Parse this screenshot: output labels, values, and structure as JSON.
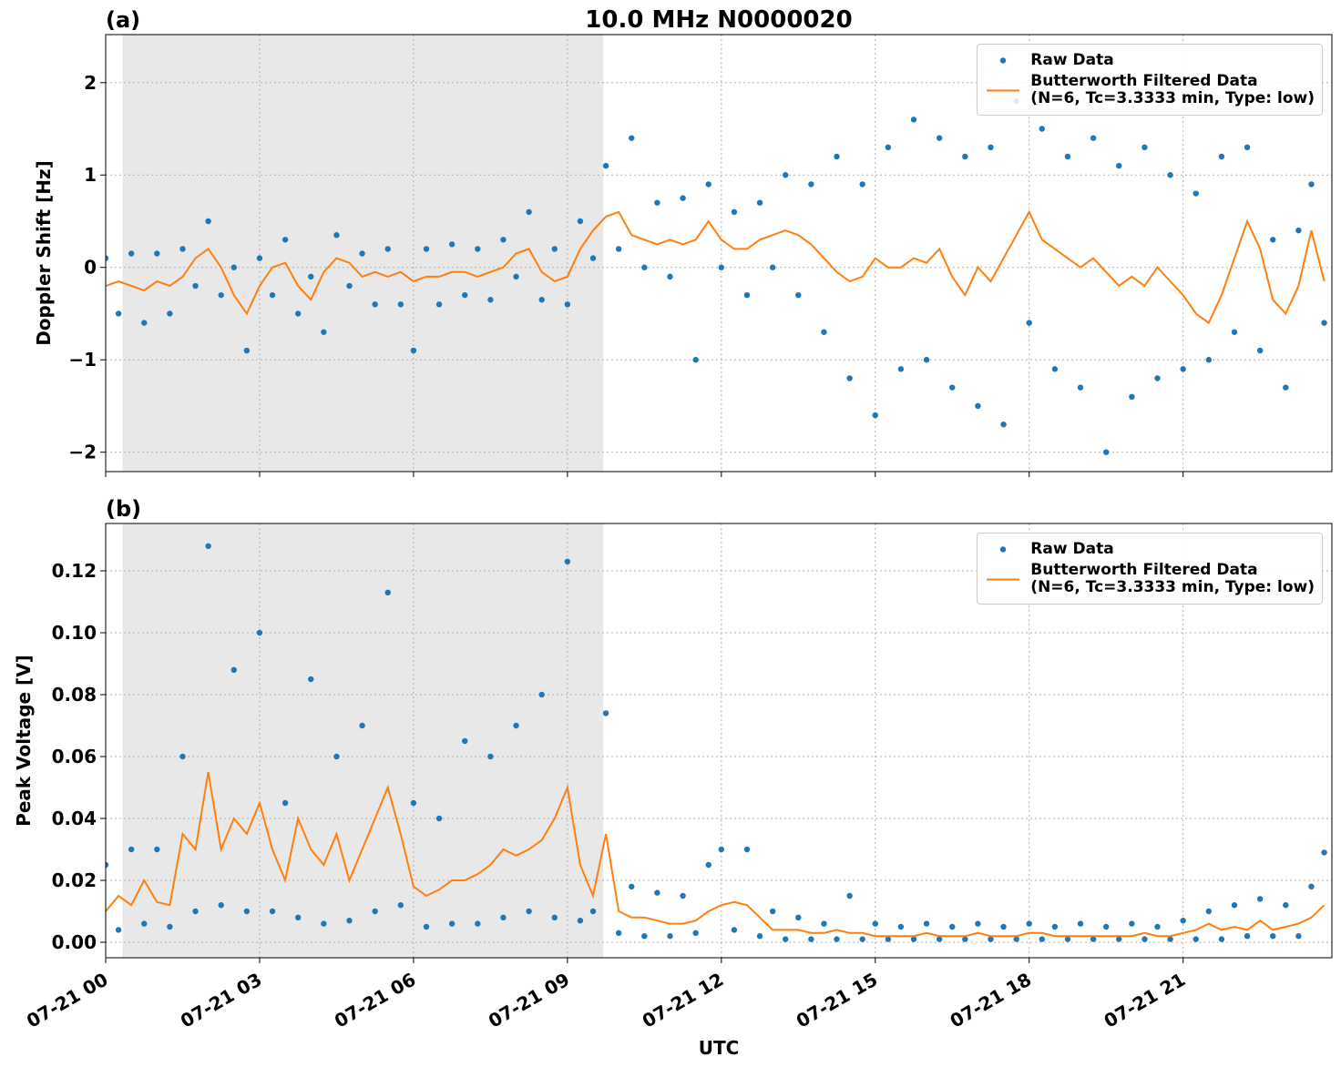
{
  "chart_data": [
    {
      "type": "line",
      "title": "10.0 MHz N0000020",
      "panel_label": "(a)",
      "ylabel": "Doppler Shift [Hz]",
      "xlim": [
        0,
        23.9
      ],
      "ylim": [
        -2.21,
        2.52
      ],
      "grid": true,
      "shaded_span": [
        0.33,
        9.7
      ],
      "shade_color": "#e8e8e8",
      "xticks": [
        0,
        3,
        6,
        9,
        12,
        15,
        18,
        21
      ],
      "yticks": [
        {
          "value": -2,
          "label": "−2"
        },
        {
          "value": -1,
          "label": "−1"
        },
        0,
        1,
        2
      ],
      "legend": "upper right",
      "x": [
        0,
        0.25,
        0.5,
        0.75,
        1,
        1.25,
        1.5,
        1.75,
        2,
        2.25,
        2.5,
        2.75,
        3,
        3.25,
        3.5,
        3.75,
        4,
        4.25,
        4.5,
        4.75,
        5,
        5.25,
        5.5,
        5.75,
        6,
        6.25,
        6.5,
        6.75,
        7,
        7.25,
        7.5,
        7.75,
        8,
        8.25,
        8.5,
        8.75,
        9,
        9.25,
        9.5,
        9.75,
        10,
        10.25,
        10.5,
        10.75,
        11,
        11.25,
        11.5,
        11.75,
        12,
        12.25,
        12.5,
        12.75,
        13,
        13.25,
        13.5,
        13.75,
        14,
        14.25,
        14.5,
        14.75,
        15,
        15.25,
        15.5,
        15.75,
        16,
        16.25,
        16.5,
        16.75,
        17,
        17.25,
        17.5,
        17.75,
        18,
        18.25,
        18.5,
        18.75,
        19,
        19.25,
        19.5,
        19.75,
        20,
        20.25,
        20.5,
        20.75,
        21,
        21.25,
        21.5,
        21.75,
        22,
        22.25,
        22.5,
        22.75,
        23,
        23.25,
        23.5,
        23.75
      ],
      "series": [
        {
          "name": "Raw Data",
          "style": "dots",
          "color": "#1f77b4",
          "values": [
            0.1,
            -0.5,
            0.15,
            -0.6,
            0.15,
            -0.5,
            0.2,
            -0.2,
            0.5,
            -0.3,
            0.0,
            -0.9,
            0.1,
            -0.3,
            0.3,
            -0.5,
            -0.1,
            -0.7,
            0.35,
            -0.2,
            0.15,
            -0.4,
            0.2,
            -0.4,
            -0.9,
            0.2,
            -0.4,
            0.25,
            -0.3,
            0.2,
            -0.35,
            0.3,
            -0.1,
            0.6,
            -0.35,
            0.2,
            -0.4,
            0.5,
            0.1,
            1.1,
            0.2,
            1.4,
            0.0,
            0.7,
            -0.1,
            0.75,
            -1.0,
            0.9,
            0.0,
            0.6,
            -0.3,
            0.7,
            0.0,
            1.0,
            -0.3,
            0.9,
            -0.7,
            1.2,
            -1.2,
            0.9,
            -1.6,
            1.3,
            -1.1,
            1.6,
            -1.0,
            1.4,
            -1.3,
            1.2,
            -1.5,
            1.3,
            -1.7,
            1.8,
            -0.6,
            1.5,
            -1.1,
            1.2,
            -1.3,
            1.4,
            -2.0,
            1.1,
            -1.4,
            1.3,
            -1.2,
            1.0,
            -1.1,
            0.8,
            -1.0,
            1.2,
            -0.7,
            1.3,
            -0.9,
            0.3,
            -1.3,
            0.4,
            0.9,
            -0.6
          ]
        },
        {
          "name": "Butterworth Filtered Data\n(N=6, Tc=3.3333 min, Type: low)",
          "style": "line",
          "color": "#ff7f0e",
          "values": [
            -0.2,
            -0.15,
            -0.2,
            -0.25,
            -0.15,
            -0.2,
            -0.1,
            0.1,
            0.2,
            0.0,
            -0.3,
            -0.5,
            -0.2,
            0.0,
            0.05,
            -0.2,
            -0.35,
            -0.05,
            0.1,
            0.05,
            -0.1,
            -0.05,
            -0.1,
            -0.05,
            -0.15,
            -0.1,
            -0.1,
            -0.05,
            -0.05,
            -0.1,
            -0.05,
            0.0,
            0.15,
            0.2,
            -0.05,
            -0.15,
            -0.1,
            0.2,
            0.4,
            0.55,
            0.6,
            0.35,
            0.3,
            0.25,
            0.3,
            0.25,
            0.3,
            0.5,
            0.3,
            0.2,
            0.2,
            0.3,
            0.35,
            0.4,
            0.35,
            0.25,
            0.1,
            -0.05,
            -0.15,
            -0.1,
            0.1,
            0.0,
            0.0,
            0.1,
            0.05,
            0.2,
            -0.1,
            -0.3,
            0.0,
            -0.15,
            0.1,
            0.35,
            0.6,
            0.3,
            0.2,
            0.1,
            0.0,
            0.1,
            -0.05,
            -0.2,
            -0.1,
            -0.2,
            0.0,
            -0.15,
            -0.3,
            -0.5,
            -0.6,
            -0.3,
            0.1,
            0.5,
            0.2,
            -0.35,
            -0.5,
            -0.2,
            0.4,
            -0.15
          ]
        }
      ]
    },
    {
      "type": "line",
      "panel_label": "(b)",
      "ylabel": "Peak Voltage [V]",
      "xlabel": "UTC",
      "xlim": [
        0,
        23.9
      ],
      "ylim": [
        -0.005,
        0.1353
      ],
      "grid": true,
      "shaded_span": [
        0.33,
        9.7
      ],
      "shade_color": "#e8e8e8",
      "xticks": [
        {
          "value": 0,
          "label": "07-21 00"
        },
        {
          "value": 3,
          "label": "07-21 03"
        },
        {
          "value": 6,
          "label": "07-21 06"
        },
        {
          "value": 9,
          "label": "07-21 09"
        },
        {
          "value": 12,
          "label": "07-21 12"
        },
        {
          "value": 15,
          "label": "07-21 15"
        },
        {
          "value": 18,
          "label": "07-21 18"
        },
        {
          "value": 21,
          "label": "07-21 21"
        }
      ],
      "yticks": [
        {
          "value": 0,
          "label": "0.00"
        },
        {
          "value": 0.02,
          "label": "0.02"
        },
        {
          "value": 0.04,
          "label": "0.04"
        },
        {
          "value": 0.06,
          "label": "0.06"
        },
        {
          "value": 0.08,
          "label": "0.08"
        },
        {
          "value": 0.1,
          "label": "0.10"
        },
        {
          "value": 0.12,
          "label": "0.12"
        }
      ],
      "legend": "upper right",
      "x": [
        0,
        0.25,
        0.5,
        0.75,
        1,
        1.25,
        1.5,
        1.75,
        2,
        2.25,
        2.5,
        2.75,
        3,
        3.25,
        3.5,
        3.75,
        4,
        4.25,
        4.5,
        4.75,
        5,
        5.25,
        5.5,
        5.75,
        6,
        6.25,
        6.5,
        6.75,
        7,
        7.25,
        7.5,
        7.75,
        8,
        8.25,
        8.5,
        8.75,
        9,
        9.25,
        9.5,
        9.75,
        10,
        10.25,
        10.5,
        10.75,
        11,
        11.25,
        11.5,
        11.75,
        12,
        12.25,
        12.5,
        12.75,
        13,
        13.25,
        13.5,
        13.75,
        14,
        14.25,
        14.5,
        14.75,
        15,
        15.25,
        15.5,
        15.75,
        16,
        16.25,
        16.5,
        16.75,
        17,
        17.25,
        17.5,
        17.75,
        18,
        18.25,
        18.5,
        18.75,
        19,
        19.25,
        19.5,
        19.75,
        20,
        20.25,
        20.5,
        20.75,
        21,
        21.25,
        21.5,
        21.75,
        22,
        22.25,
        22.5,
        22.75,
        23,
        23.25,
        23.5,
        23.75
      ],
      "series": [
        {
          "name": "Raw Data",
          "style": "dots",
          "color": "#1f77b4",
          "values": [
            0.025,
            0.004,
            0.03,
            0.006,
            0.03,
            0.005,
            0.06,
            0.01,
            0.128,
            0.012,
            0.088,
            0.01,
            0.1,
            0.01,
            0.045,
            0.008,
            0.085,
            0.006,
            0.06,
            0.007,
            0.07,
            0.01,
            0.113,
            0.012,
            0.045,
            0.005,
            0.04,
            0.006,
            0.065,
            0.006,
            0.06,
            0.008,
            0.07,
            0.01,
            0.08,
            0.008,
            0.123,
            0.007,
            0.01,
            0.074,
            0.003,
            0.018,
            0.002,
            0.016,
            0.002,
            0.015,
            0.003,
            0.025,
            0.03,
            0.004,
            0.03,
            0.002,
            0.01,
            0.001,
            0.008,
            0.001,
            0.006,
            0.001,
            0.015,
            0.001,
            0.006,
            0.001,
            0.005,
            0.001,
            0.006,
            0.001,
            0.005,
            0.001,
            0.006,
            0.001,
            0.005,
            0.001,
            0.006,
            0.001,
            0.005,
            0.001,
            0.006,
            0.001,
            0.005,
            0.001,
            0.006,
            0.001,
            0.005,
            0.001,
            0.007,
            0.001,
            0.01,
            0.001,
            0.012,
            0.002,
            0.014,
            0.002,
            0.012,
            0.002,
            0.018,
            0.029
          ]
        },
        {
          "name": "Butterworth Filtered Data\n(N=6, Tc=3.3333 min, Type: low)",
          "style": "line",
          "color": "#ff7f0e",
          "values": [
            0.01,
            0.015,
            0.012,
            0.02,
            0.013,
            0.012,
            0.035,
            0.03,
            0.055,
            0.03,
            0.04,
            0.035,
            0.045,
            0.03,
            0.02,
            0.04,
            0.03,
            0.025,
            0.035,
            0.02,
            0.03,
            0.04,
            0.05,
            0.035,
            0.018,
            0.015,
            0.017,
            0.02,
            0.02,
            0.022,
            0.025,
            0.03,
            0.028,
            0.03,
            0.033,
            0.04,
            0.05,
            0.025,
            0.015,
            0.035,
            0.01,
            0.008,
            0.008,
            0.007,
            0.006,
            0.006,
            0.007,
            0.01,
            0.012,
            0.013,
            0.012,
            0.008,
            0.004,
            0.004,
            0.004,
            0.003,
            0.003,
            0.004,
            0.003,
            0.003,
            0.002,
            0.002,
            0.002,
            0.002,
            0.003,
            0.002,
            0.002,
            0.002,
            0.003,
            0.002,
            0.002,
            0.002,
            0.003,
            0.003,
            0.002,
            0.002,
            0.002,
            0.002,
            0.002,
            0.002,
            0.002,
            0.003,
            0.002,
            0.002,
            0.003,
            0.004,
            0.006,
            0.004,
            0.005,
            0.004,
            0.007,
            0.004,
            0.005,
            0.006,
            0.008,
            0.012
          ]
        }
      ]
    }
  ]
}
